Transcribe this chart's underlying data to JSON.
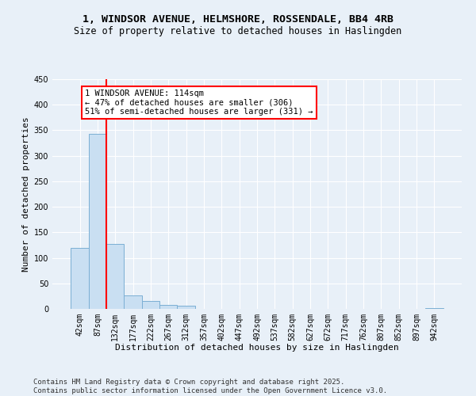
{
  "title_line1": "1, WINDSOR AVENUE, HELMSHORE, ROSSENDALE, BB4 4RB",
  "title_line2": "Size of property relative to detached houses in Haslingden",
  "xlabel": "Distribution of detached houses by size in Haslingden",
  "ylabel": "Number of detached properties",
  "bar_labels": [
    "42sqm",
    "87sqm",
    "132sqm",
    "177sqm",
    "222sqm",
    "267sqm",
    "312sqm",
    "357sqm",
    "402sqm",
    "447sqm",
    "492sqm",
    "537sqm",
    "582sqm",
    "627sqm",
    "672sqm",
    "717sqm",
    "762sqm",
    "807sqm",
    "852sqm",
    "897sqm",
    "942sqm"
  ],
  "bar_values": [
    120,
    343,
    127,
    27,
    15,
    8,
    6,
    0,
    0,
    0,
    0,
    0,
    0,
    0,
    0,
    0,
    0,
    0,
    0,
    0,
    2
  ],
  "bar_color": "#c9dff2",
  "bar_edge_color": "#7bafd4",
  "red_line_index": 2,
  "annotation_text": "1 WINDSOR AVENUE: 114sqm\n← 47% of detached houses are smaller (306)\n51% of semi-detached houses are larger (331) →",
  "annotation_box_color": "white",
  "annotation_box_edge": "red",
  "ylim": [
    0,
    450
  ],
  "yticks": [
    0,
    50,
    100,
    150,
    200,
    250,
    300,
    350,
    400,
    450
  ],
  "footer": "Contains HM Land Registry data © Crown copyright and database right 2025.\nContains public sector information licensed under the Open Government Licence v3.0.",
  "bg_color": "#e8f0f8",
  "plot_bg_color": "#e8f0f8",
  "grid_color": "white",
  "title_fontsize": 9.5,
  "subtitle_fontsize": 8.5,
  "axis_label_fontsize": 8,
  "tick_fontsize": 7,
  "annotation_fontsize": 7.5,
  "footer_fontsize": 6.5
}
